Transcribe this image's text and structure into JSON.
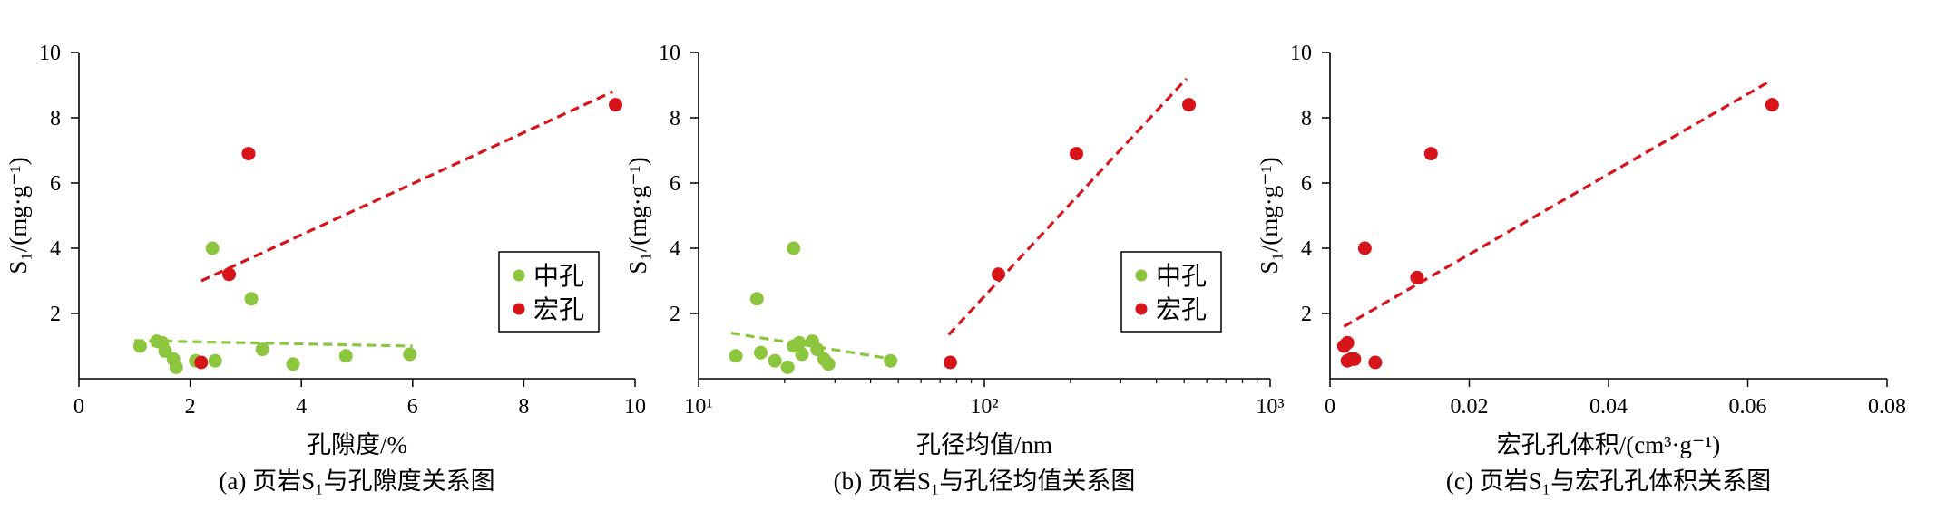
{
  "chart_data": [
    {
      "type": "scatter",
      "caption": "(a) 页岩S₁与孔隙度关系图",
      "xlabel": "孔隙度/%",
      "ylabel": "S₁/(mg·g⁻¹)",
      "xscale": "linear",
      "xlim": [
        0,
        10
      ],
      "ylim": [
        0,
        10
      ],
      "xticks": [
        0,
        2,
        4,
        6,
        8,
        10
      ],
      "yticks": [
        2,
        4,
        6,
        8,
        10
      ],
      "grid": false,
      "legend": "lower-right",
      "series": [
        {
          "name": "中孔",
          "color": "#8cc63f",
          "points": [
            [
              1.1,
              1.0
            ],
            [
              1.4,
              1.15
            ],
            [
              1.5,
              1.1
            ],
            [
              1.55,
              0.85
            ],
            [
              1.7,
              0.6
            ],
            [
              1.75,
              0.35
            ],
            [
              2.1,
              0.55
            ],
            [
              2.4,
              4.0
            ],
            [
              2.45,
              0.55
            ],
            [
              3.1,
              2.45
            ],
            [
              3.3,
              0.9
            ],
            [
              3.85,
              0.45
            ],
            [
              4.8,
              0.7
            ],
            [
              5.95,
              0.75
            ]
          ],
          "trend": [
            [
              1.0,
              1.17
            ],
            [
              6.0,
              1.0
            ]
          ]
        },
        {
          "name": "宏孔",
          "color": "#d7141a",
          "points": [
            [
              2.2,
              0.5
            ],
            [
              2.7,
              3.2
            ],
            [
              3.05,
              6.9
            ],
            [
              9.65,
              8.4
            ]
          ],
          "trend": [
            [
              2.2,
              3.0
            ],
            [
              9.6,
              8.8
            ]
          ]
        }
      ]
    },
    {
      "type": "scatter",
      "caption": "(b) 页岩S₁与孔径均值关系图",
      "xlabel": "孔径均值/nm",
      "ylabel": "S₁/(mg·g⁻¹)",
      "xscale": "log",
      "xlim": [
        10,
        1000
      ],
      "ylim": [
        0,
        10
      ],
      "xticks": [
        10,
        100,
        1000
      ],
      "xticklabels": [
        "10¹",
        "10²",
        "10³"
      ],
      "yticks": [
        2,
        4,
        6,
        8,
        10
      ],
      "grid": false,
      "legend": "lower-right",
      "series": [
        {
          "name": "中孔",
          "color": "#8cc63f",
          "points": [
            [
              13.5,
              0.7
            ],
            [
              16,
              2.45
            ],
            [
              16.5,
              0.8
            ],
            [
              18.5,
              0.55
            ],
            [
              20.5,
              0.35
            ],
            [
              21.5,
              4.0
            ],
            [
              21.5,
              1.0
            ],
            [
              22.5,
              1.1
            ],
            [
              23,
              0.75
            ],
            [
              25,
              1.15
            ],
            [
              26,
              0.9
            ],
            [
              27.5,
              0.6
            ],
            [
              28.5,
              0.45
            ],
            [
              47,
              0.55
            ]
          ],
          "trend": [
            [
              13,
              1.4
            ],
            [
              48,
              0.6
            ]
          ]
        },
        {
          "name": "宏孔",
          "color": "#d7141a",
          "points": [
            [
              76,
              0.5
            ],
            [
              112,
              3.2
            ],
            [
              210,
              6.9
            ],
            [
              520,
              8.4
            ]
          ],
          "trend": [
            [
              75,
              1.35
            ],
            [
              510,
              9.2
            ]
          ]
        }
      ]
    },
    {
      "type": "scatter",
      "caption": "(c) 页岩S₁与宏孔孔体积关系图",
      "xlabel": "宏孔孔体积/(cm³·g⁻¹)",
      "ylabel": "S₁/(mg·g⁻¹)",
      "xscale": "linear",
      "xlim": [
        0,
        0.08
      ],
      "ylim": [
        0,
        10
      ],
      "xticks": [
        0,
        0.02,
        0.04,
        0.06,
        0.08
      ],
      "yticks": [
        2,
        4,
        6,
        8,
        10
      ],
      "grid": false,
      "series": [
        {
          "name": "",
          "color": "#d7141a",
          "points": [
            [
              0.002,
              1.0
            ],
            [
              0.0025,
              1.1
            ],
            [
              0.0025,
              0.55
            ],
            [
              0.003,
              0.6
            ],
            [
              0.0035,
              0.6
            ],
            [
              0.005,
              4.0
            ],
            [
              0.0065,
              0.5
            ],
            [
              0.0125,
              3.1
            ],
            [
              0.0145,
              6.9
            ],
            [
              0.0635,
              8.4
            ]
          ],
          "trend": [
            [
              0.002,
              1.6
            ],
            [
              0.063,
              9.1
            ]
          ]
        }
      ]
    }
  ]
}
